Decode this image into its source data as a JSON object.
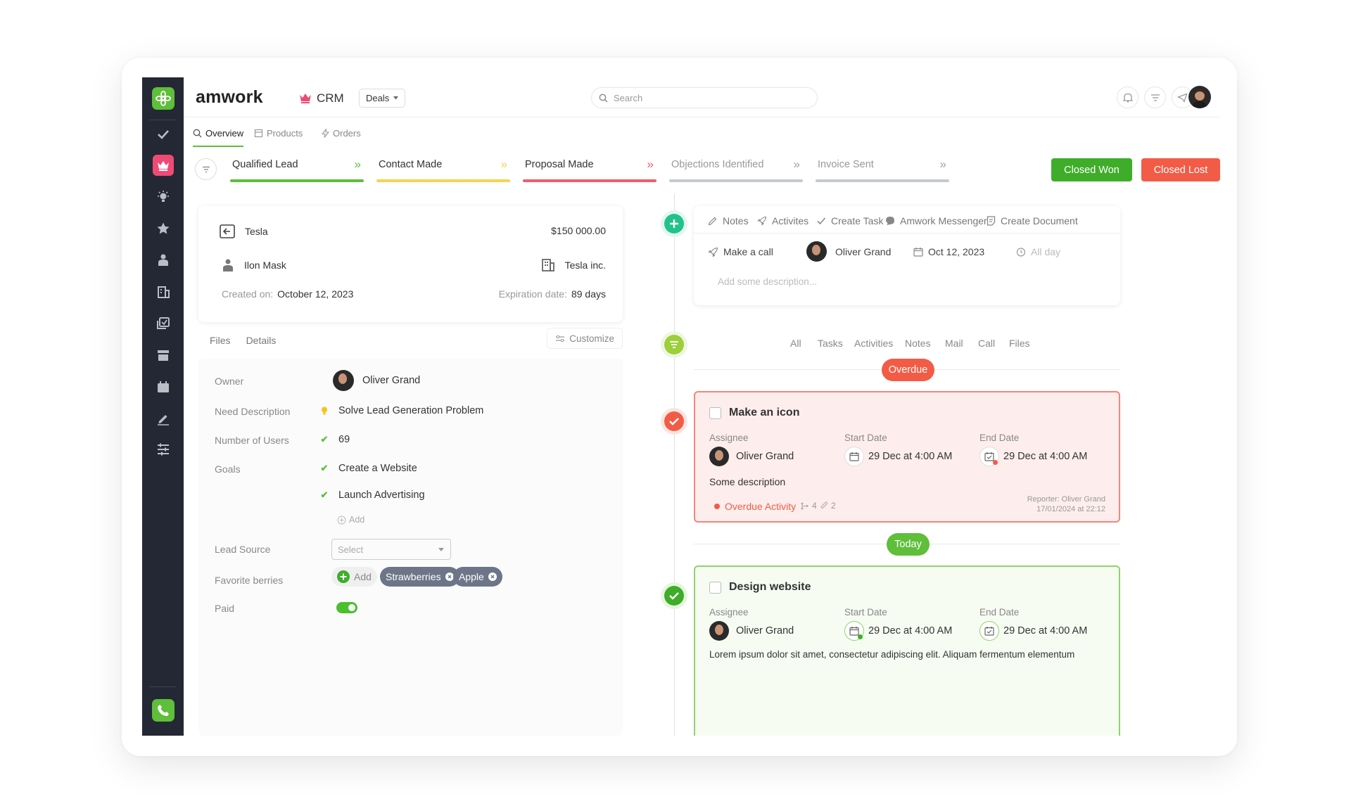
{
  "brand": {
    "name": "amwork",
    "module": "CRM",
    "section_dropdown": "Deals"
  },
  "search": {
    "placeholder": "Search"
  },
  "tabs": [
    {
      "label": "Overview"
    },
    {
      "label": "Products"
    },
    {
      "label": "Orders"
    }
  ],
  "pipeline": {
    "stages": [
      {
        "label": "Qualified Lead",
        "color": "#5fbe3a",
        "chevron_color": "#5fbe3a",
        "active": true
      },
      {
        "label": "Contact Made",
        "color": "#f5d451",
        "chevron_color": "#f5d451",
        "active": true
      },
      {
        "label": "Proposal Made",
        "color": "#f25c6a",
        "chevron_color": "#f25c6a",
        "active": true
      },
      {
        "label": "Objections Identified",
        "color": "#c5c9d0",
        "chevron_color": "#9aa0a8",
        "active": false
      },
      {
        "label": "Invoice Sent",
        "color": "#c5c9d0",
        "chevron_color": "#9aa0a8",
        "active": false
      }
    ],
    "closed_won": "Closed Won",
    "closed_lost": "Closed Lost"
  },
  "deal": {
    "company": "Tesla",
    "amount": "$150 000.00",
    "contact": "Ilon Mask",
    "organization": "Tesla inc.",
    "created_label": "Created on:",
    "created_value": "October 12, 2023",
    "expiration_label": "Expiration date:",
    "expiration_value": "89 days"
  },
  "details": {
    "tabs": [
      "Files",
      "Details"
    ],
    "customize": "Customize",
    "owner_label": "Owner",
    "owner_value": "Oliver Grand",
    "need_label": "Need Description",
    "need_value": "Solve Lead Generation Problem",
    "users_label": "Number of Users",
    "users_value": "69",
    "goals_label": "Goals",
    "goals": [
      "Create a Website",
      "Launch Advertising"
    ],
    "add_label": "Add",
    "lead_source_label": "Lead Source",
    "lead_source_placeholder": "Select",
    "berries_label": "Favorite berries",
    "berries_add": "Add",
    "berries": [
      "Strawberries",
      "Apple"
    ],
    "paid_label": "Paid",
    "paid": true
  },
  "activity": {
    "tabs": [
      "Notes",
      "Activites",
      "Create Task",
      "Amwork Messenger",
      "Create Document"
    ],
    "action": "Make a call",
    "assignee": "Oliver Grand",
    "date": "Oct 12, 2023",
    "all_day": "All day",
    "description_placeholder": "Add some description..."
  },
  "feed_filters": [
    "All",
    "Tasks",
    "Activities",
    "Notes",
    "Mail",
    "Call",
    "Files"
  ],
  "overdue_label": "Overdue",
  "today_label": "Today",
  "tasks": [
    {
      "title": "Make an icon",
      "assignee_label": "Assignee",
      "assignee": "Oliver Grand",
      "start_label": "Start Date",
      "start": "29 Dec at 4:00 AM",
      "end_label": "End Date",
      "end": "29 Dec at 4:00 AM",
      "description": "Some description",
      "status": "Overdue Activity",
      "subtasks": "4",
      "attachments": "2",
      "reporter": "Reporter: Oliver Grand",
      "reported_at": "17/01/2024 at 22:12"
    },
    {
      "title": "Design website",
      "assignee_label": "Assignee",
      "assignee": "Oliver Grand",
      "start_label": "Start Date",
      "start": "29 Dec at 4:00 AM",
      "end_label": "End Date",
      "end": "29 Dec at 4:00 AM",
      "description": "Lorem ipsum dolor sit amet, consectetur adipiscing elit. Aliquam fermentum elementum"
    }
  ],
  "colors": {
    "accent_green": "#5fbe3a",
    "danger": "#f25c46",
    "sidebar": "#242834",
    "crm_pink": "#ef4a76"
  }
}
